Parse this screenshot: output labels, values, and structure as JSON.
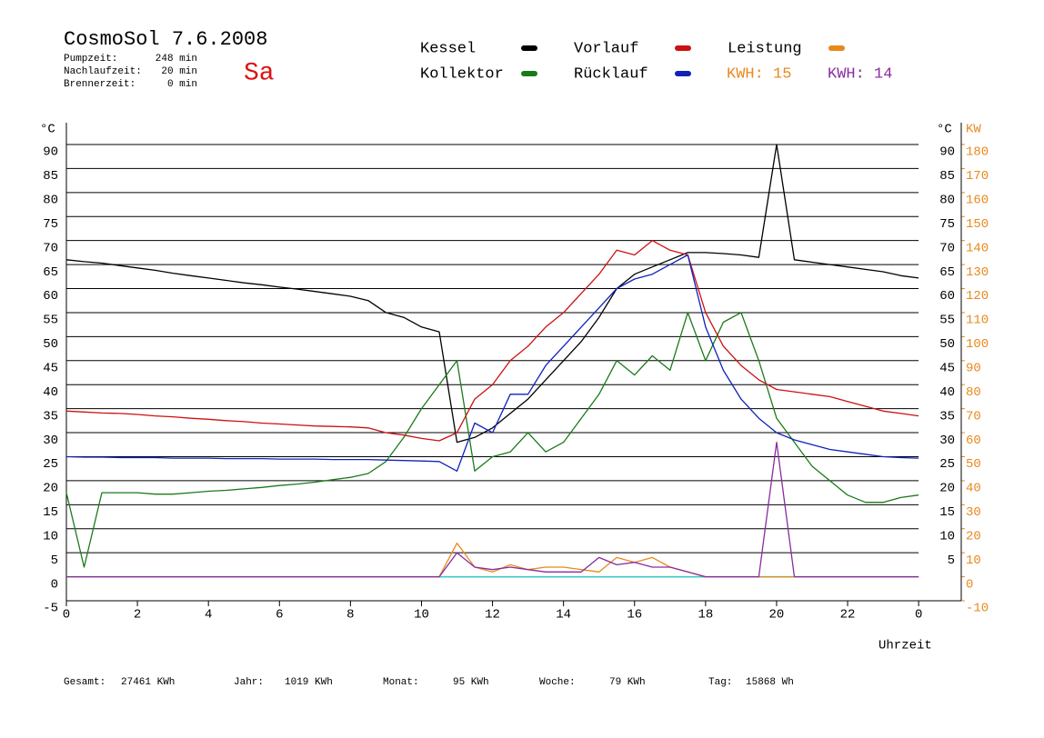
{
  "chart_data": {
    "type": "line",
    "title": "CosmoSol 7.6.2008",
    "day": "Sa",
    "stats": [
      {
        "label": "Pumpzeit:",
        "value": "248 min"
      },
      {
        "label": "Nachlaufzeit:",
        "value": "20 min"
      },
      {
        "label": "Brennerzeit:",
        "value": "0 min"
      }
    ],
    "annotations": [
      {
        "text": "KWH: 15",
        "color": "#e8891c"
      },
      {
        "text": "KWH: 14",
        "color": "#8a2aa0"
      }
    ],
    "y_label": "°C",
    "y2_label": "KW",
    "x_label": "Uhrzeit",
    "totals": [
      {
        "label": "Gesamt:",
        "value": "27461 KWh"
      },
      {
        "label": "Jahr:",
        "value": "1019 KWh"
      },
      {
        "label": "Monat:",
        "value": "95 KWh"
      },
      {
        "label": "Woche:",
        "value": "79 KWh"
      },
      {
        "label": "Tag:",
        "value": "15868 Wh"
      }
    ],
    "x": [
      0,
      0.5,
      1,
      1.5,
      2,
      2.5,
      3,
      3.5,
      4,
      4.5,
      5,
      5.5,
      6,
      6.5,
      7,
      7.5,
      8,
      8.5,
      9,
      9.5,
      10,
      10.5,
      11,
      11.5,
      12,
      12.5,
      13,
      13.5,
      14,
      14.5,
      15,
      15.5,
      16,
      16.5,
      17,
      17.5,
      18,
      18.5,
      19,
      19.5,
      20,
      20.5,
      21,
      21.5,
      22,
      22.5,
      23,
      23.5,
      24
    ],
    "series": [
      {
        "name": "Kessel",
        "color": "#000000",
        "values": [
          66,
          65.6,
          65.3,
          64.8,
          64.3,
          63.8,
          63.2,
          62.7,
          62.2,
          61.7,
          61.2,
          60.8,
          60.3,
          59.9,
          59.4,
          58.9,
          58.4,
          57.5,
          55,
          54,
          52,
          51,
          28,
          29,
          31,
          34,
          37,
          41,
          45,
          49,
          54,
          60,
          63,
          64.5,
          66,
          67.5,
          67.5,
          67.3,
          67,
          66.5,
          90,
          66,
          65.5,
          65,
          64.5,
          64,
          63.5,
          62.7,
          62.2
        ]
      },
      {
        "name": "Kollektor",
        "color": "#1a7a1a",
        "values": [
          17.5,
          2,
          17.5,
          17.5,
          17.5,
          17.2,
          17.2,
          17.5,
          17.8,
          18,
          18.3,
          18.6,
          19,
          19.3,
          19.7,
          20.2,
          20.7,
          21.5,
          24,
          29,
          35,
          40,
          45,
          22,
          25,
          26,
          30,
          26,
          28,
          33,
          38,
          45,
          42,
          46,
          43,
          55,
          45,
          53,
          55,
          45,
          33,
          28,
          23,
          20,
          17,
          15.5,
          15.5,
          16.5,
          17
        ]
      },
      {
        "name": "Vorlauf",
        "color": "#cc1111",
        "values": [
          34.5,
          34.3,
          34.1,
          34,
          33.8,
          33.5,
          33.3,
          33,
          32.8,
          32.5,
          32.3,
          32,
          31.8,
          31.6,
          31.4,
          31.3,
          31.2,
          31,
          30,
          29.5,
          28.8,
          28.3,
          30,
          37,
          40,
          45,
          48,
          52,
          55,
          59,
          63,
          68,
          67,
          70,
          68,
          67,
          55,
          48,
          44,
          41,
          39,
          38.5,
          38,
          37.5,
          36.5,
          35.5,
          34.5,
          34,
          33.5
        ]
      },
      {
        "name": "Rücklauf",
        "color": "#1122bb",
        "values": [
          25,
          24.9,
          24.9,
          24.8,
          24.8,
          24.8,
          24.7,
          24.7,
          24.7,
          24.6,
          24.6,
          24.6,
          24.5,
          24.5,
          24.5,
          24.4,
          24.4,
          24.4,
          24.3,
          24.2,
          24.1,
          24,
          22,
          32,
          30,
          38,
          38,
          44,
          48,
          52,
          56,
          60,
          62,
          63,
          65,
          67,
          52,
          43,
          37,
          33,
          30,
          28.5,
          27.5,
          26.5,
          26,
          25.5,
          25,
          24.8,
          24.7
        ]
      },
      {
        "name": "Leistung",
        "color": "#e8891c",
        "axis": "y2",
        "values": [
          0,
          0,
          0,
          0,
          0,
          0,
          0,
          0,
          0,
          0,
          0,
          0,
          0,
          0,
          0,
          0,
          0,
          0,
          0,
          0,
          0,
          0,
          14,
          4,
          2,
          5,
          3,
          4,
          4,
          3,
          2,
          8,
          6,
          8,
          4,
          2,
          0,
          0,
          0,
          0,
          0,
          0,
          0,
          0,
          0,
          0,
          0,
          0,
          0
        ]
      },
      {
        "color": "#8a2aa0",
        "axis": "y2",
        "values": [
          0,
          0,
          0,
          0,
          0,
          0,
          0,
          0,
          0,
          0,
          0,
          0,
          0,
          0,
          0,
          0,
          0,
          0,
          0,
          0,
          0,
          0,
          10,
          4,
          3,
          4,
          3,
          2,
          2,
          2,
          8,
          5,
          6,
          4,
          4,
          2,
          0,
          0,
          0,
          0,
          56,
          0,
          0,
          0,
          0,
          0,
          0,
          0,
          0
        ]
      }
    ],
    "xlim": [
      0,
      25.2
    ],
    "xticks": [
      0,
      2,
      4,
      6,
      8,
      10,
      12,
      14,
      16,
      18,
      20,
      22,
      {
        "value": 24,
        "label": "0"
      }
    ],
    "ylim": [
      -5,
      90
    ],
    "yticks": [
      -5,
      0,
      5,
      10,
      15,
      20,
      25,
      30,
      35,
      40,
      45,
      50,
      55,
      60,
      65,
      70,
      75,
      80,
      85,
      90
    ],
    "y2lim": [
      -10,
      180
    ],
    "y2ticks": [
      -10,
      0,
      10,
      20,
      30,
      40,
      50,
      60,
      70,
      80,
      90,
      100,
      110,
      120,
      130,
      140,
      150,
      160,
      170,
      180
    ],
    "y2color": "#e8891c",
    "grid": true
  }
}
